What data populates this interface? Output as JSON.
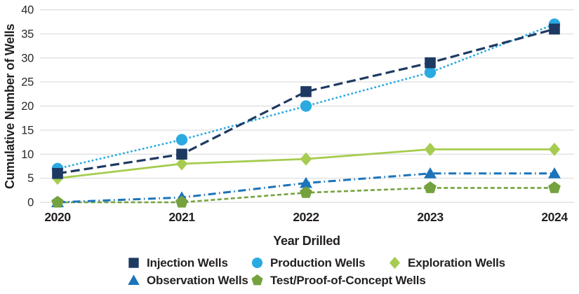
{
  "chart_data": {
    "type": "line",
    "title": "",
    "xlabel": "Year Drilled",
    "ylabel": "Cumulative Number of Wells",
    "categories": [
      "2020",
      "2021",
      "2022",
      "2023",
      "2024"
    ],
    "series": [
      {
        "name": "Injection Wells",
        "marker": "square",
        "line_style": "long-dash",
        "color": "#1e3a62",
        "values": [
          6,
          10,
          23,
          29,
          36
        ]
      },
      {
        "name": "Production Wells",
        "marker": "circle",
        "line_style": "dotted",
        "color": "#2aaae1",
        "values": [
          7,
          13,
          20,
          27,
          37
        ]
      },
      {
        "name": "Exploration Wells",
        "marker": "diamond",
        "line_style": "solid",
        "color": "#a5cc4f",
        "values": [
          5,
          8,
          9,
          11,
          11
        ]
      },
      {
        "name": "Observation Wells",
        "marker": "triangle",
        "line_style": "dash-dot",
        "color": "#1c74ba",
        "values": [
          0,
          1,
          4,
          6,
          6
        ]
      },
      {
        "name": "Test/Proof-of-Concept Wells",
        "marker": "pentagon",
        "line_style": "short-dash",
        "color": "#75a23e",
        "values": [
          0,
          0,
          2,
          3,
          3
        ]
      }
    ],
    "ylim": [
      0,
      40
    ],
    "yticks": [
      0,
      5,
      10,
      15,
      20,
      25,
      30,
      35,
      40
    ],
    "grid": true,
    "legend_position": "bottom",
    "legend_rows": [
      3,
      2
    ],
    "colors": {
      "text": "#231f20",
      "gridline": "#e1e1e1",
      "background": "#ffffff"
    }
  }
}
